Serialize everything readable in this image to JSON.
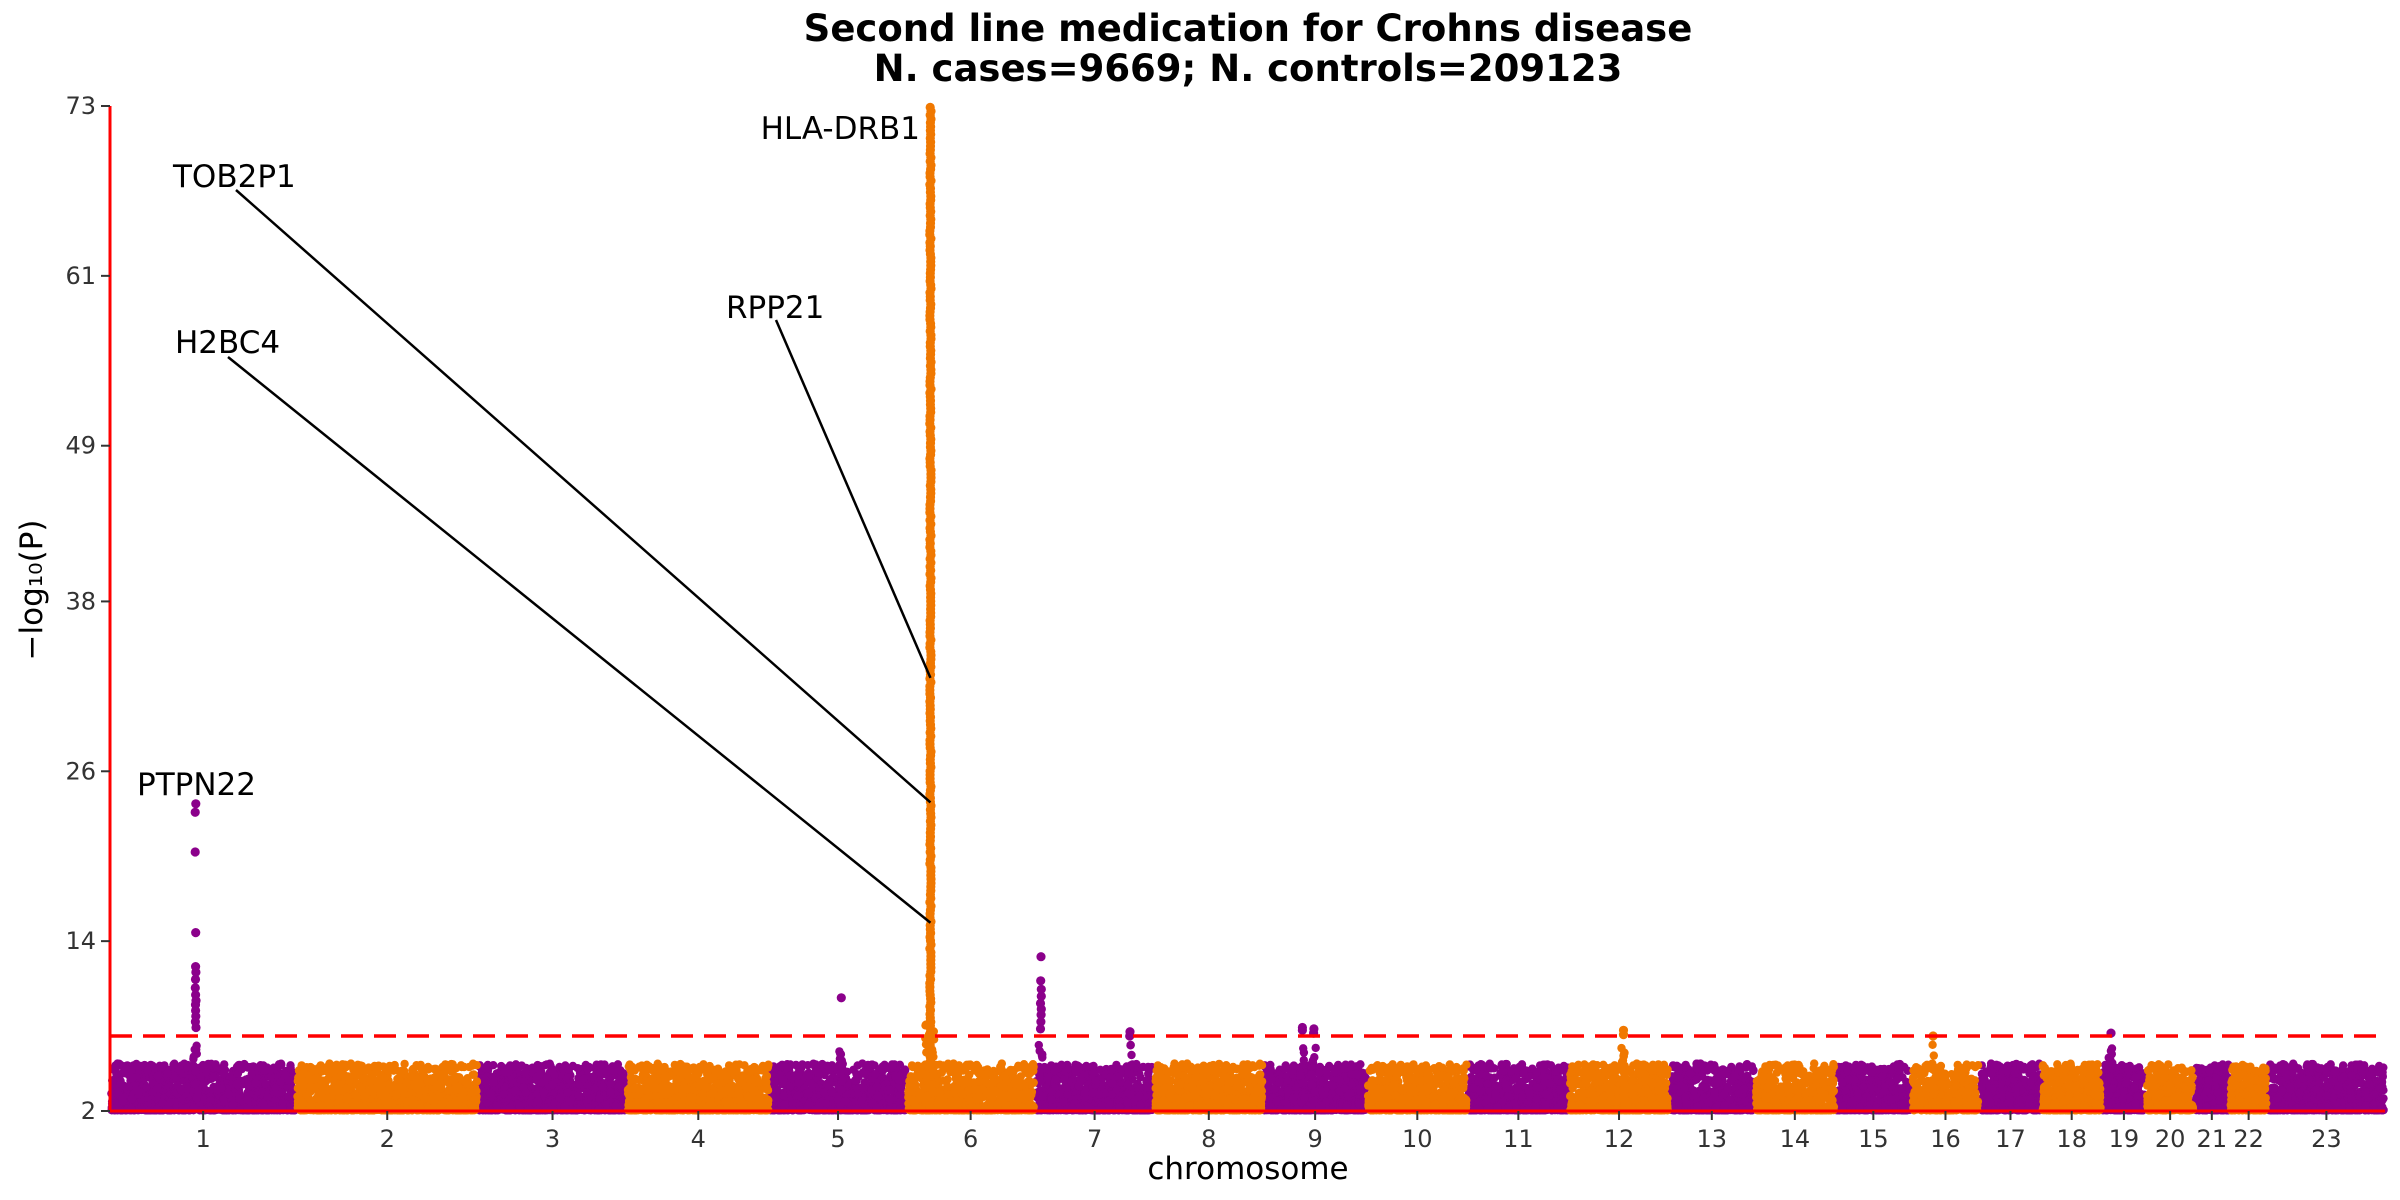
{
  "chart_data": {
    "type": "scatter",
    "title": "Second line medication for Crohns disease",
    "subtitle": "N. cases=9669; N. controls=209123",
    "xlabel": "chromosome",
    "ylabel": "−log₁₀(P)",
    "ylim": [
      2,
      73
    ],
    "yticks": [
      2,
      14,
      26,
      38,
      49,
      61,
      73
    ],
    "significance_threshold": 7.3,
    "colors": {
      "odd": "#8b008b",
      "even": "#f07800",
      "axis": "#ff0000",
      "threshold": "#ff0000"
    },
    "chromosomes": [
      {
        "label": "1",
        "start": 0,
        "end": 248
      },
      {
        "label": "2",
        "start": 248,
        "end": 490
      },
      {
        "label": "3",
        "start": 490,
        "end": 688
      },
      {
        "label": "4",
        "start": 688,
        "end": 878
      },
      {
        "label": "5",
        "start": 878,
        "end": 1060
      },
      {
        "label": "6",
        "start": 1060,
        "end": 1231
      },
      {
        "label": "7",
        "start": 1231,
        "end": 1390
      },
      {
        "label": "8",
        "start": 1390,
        "end": 1535
      },
      {
        "label": "9",
        "start": 1535,
        "end": 1673
      },
      {
        "label": "10",
        "start": 1673,
        "end": 1807
      },
      {
        "label": "11",
        "start": 1807,
        "end": 1942
      },
      {
        "label": "12",
        "start": 1942,
        "end": 2075
      },
      {
        "label": "13",
        "start": 2075,
        "end": 2189
      },
      {
        "label": "14",
        "start": 2189,
        "end": 2296
      },
      {
        "label": "15",
        "start": 2296,
        "end": 2398
      },
      {
        "label": "16",
        "start": 2398,
        "end": 2488
      },
      {
        "label": "17",
        "start": 2488,
        "end": 2571
      },
      {
        "label": "18",
        "start": 2571,
        "end": 2651
      },
      {
        "label": "19",
        "start": 2651,
        "end": 2710
      },
      {
        "label": "20",
        "start": 2710,
        "end": 2774
      },
      {
        "label": "21",
        "start": 2774,
        "end": 2821
      },
      {
        "label": "22",
        "start": 2821,
        "end": 2872
      },
      {
        "label": "23",
        "start": 2872,
        "end": 3028
      }
    ],
    "peaks": [
      {
        "chrom": "1",
        "pos": 114,
        "top": 23.7,
        "hits": [
          23.7,
          23.1,
          20.3,
          14.6,
          12.2,
          11.8,
          11.3,
          10.7,
          10.2,
          9.8,
          9.5,
          9.1,
          8.7,
          8.3,
          7.9
        ]
      },
      {
        "chrom": "5",
        "pos": 95,
        "top": 10.0,
        "hits": [
          10.0
        ]
      },
      {
        "chrom": "6",
        "pos": 32,
        "top": 72.9,
        "dense": true
      },
      {
        "chrom": "7",
        "pos": 8,
        "top": 12.9,
        "hits": [
          12.9,
          11.2,
          10.6,
          10.1,
          9.6,
          9.2,
          8.8,
          8.3,
          7.8
        ]
      },
      {
        "chrom": "7",
        "pos": 126,
        "top": 7.6,
        "hits": [
          7.6,
          7.3
        ]
      },
      {
        "chrom": "9",
        "pos": 52,
        "top": 7.9,
        "hits": [
          7.9,
          7.7
        ]
      },
      {
        "chrom": "9",
        "pos": 67,
        "top": 7.8,
        "hits": [
          7.8,
          7.5
        ]
      },
      {
        "chrom": "12",
        "pos": 72,
        "top": 7.7,
        "hits": [
          7.7,
          7.4
        ]
      },
      {
        "chrom": "16",
        "pos": 29,
        "top": 7.3,
        "hits": [
          7.3
        ]
      },
      {
        "chrom": "19",
        "pos": 12,
        "top": 7.5,
        "hits": [
          7.5
        ]
      }
    ],
    "annotations": [
      {
        "gene": "PTPN22",
        "chrom": "1",
        "x": 114,
        "y": 23.7
      },
      {
        "gene": "HLA-DRB1",
        "chrom": "6",
        "x": 32,
        "y": 72.9
      },
      {
        "gene": "RPP21",
        "chrom": "6",
        "x": 32,
        "y": 32.6
      },
      {
        "gene": "TOB2P1",
        "chrom": "6",
        "x": 32,
        "y": 23.8
      },
      {
        "gene": "H2BC4",
        "chrom": "6",
        "x": 32,
        "y": 15.3
      }
    ]
  }
}
